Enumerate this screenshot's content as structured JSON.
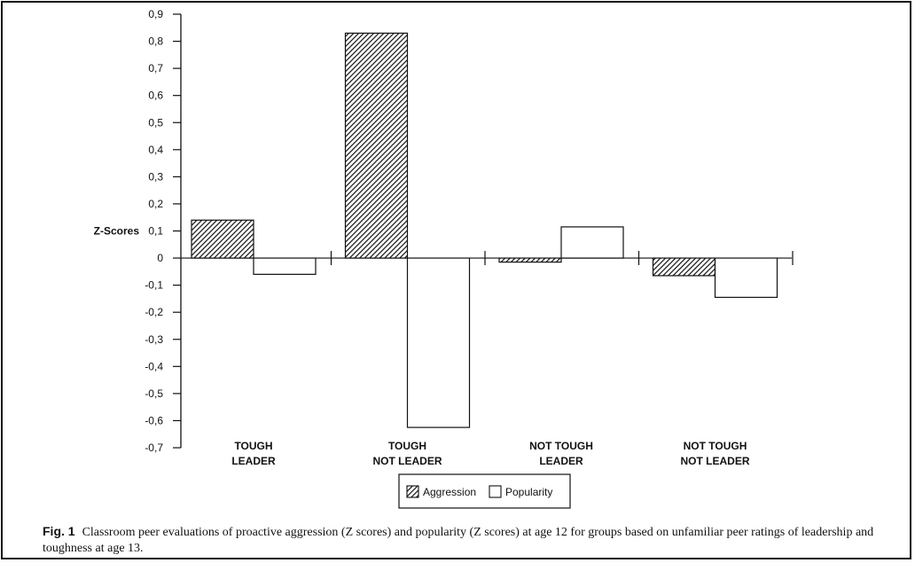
{
  "chart_data": {
    "type": "bar",
    "ylabel": "Z-Scores",
    "ylim": [
      -0.7,
      0.9
    ],
    "yticks": [
      "0,9",
      "0,8",
      "0,7",
      "0,6",
      "0,5",
      "0,4",
      "0,3",
      "0,2",
      "0,1",
      "0",
      "-0,1",
      "-0,2",
      "-0,3",
      "-0,4",
      "-0,5",
      "-0,6",
      "-0,7"
    ],
    "categories": [
      [
        "TOUGH",
        "LEADER"
      ],
      [
        "TOUGH",
        "NOT LEADER"
      ],
      [
        "NOT TOUGH",
        "LEADER"
      ],
      [
        "NOT TOUGH",
        "NOT LEADER"
      ]
    ],
    "series": [
      {
        "name": "Aggression",
        "pattern": "hatched",
        "values": [
          0.14,
          0.83,
          -0.015,
          -0.065
        ]
      },
      {
        "name": "Popularity",
        "pattern": "open",
        "values": [
          -0.06,
          -0.625,
          0.115,
          -0.145
        ]
      }
    ],
    "legend_position": "bottom-center",
    "colors": {
      "stroke": "#111111",
      "fill_open": "#ffffff"
    }
  },
  "caption": {
    "label": "Fig. 1",
    "text": "Classroom peer evaluations of proactive aggression (Z scores) and popularity (Z scores) at age 12 for groups based on unfamiliar peer ratings of leadership and toughness at age 13."
  }
}
